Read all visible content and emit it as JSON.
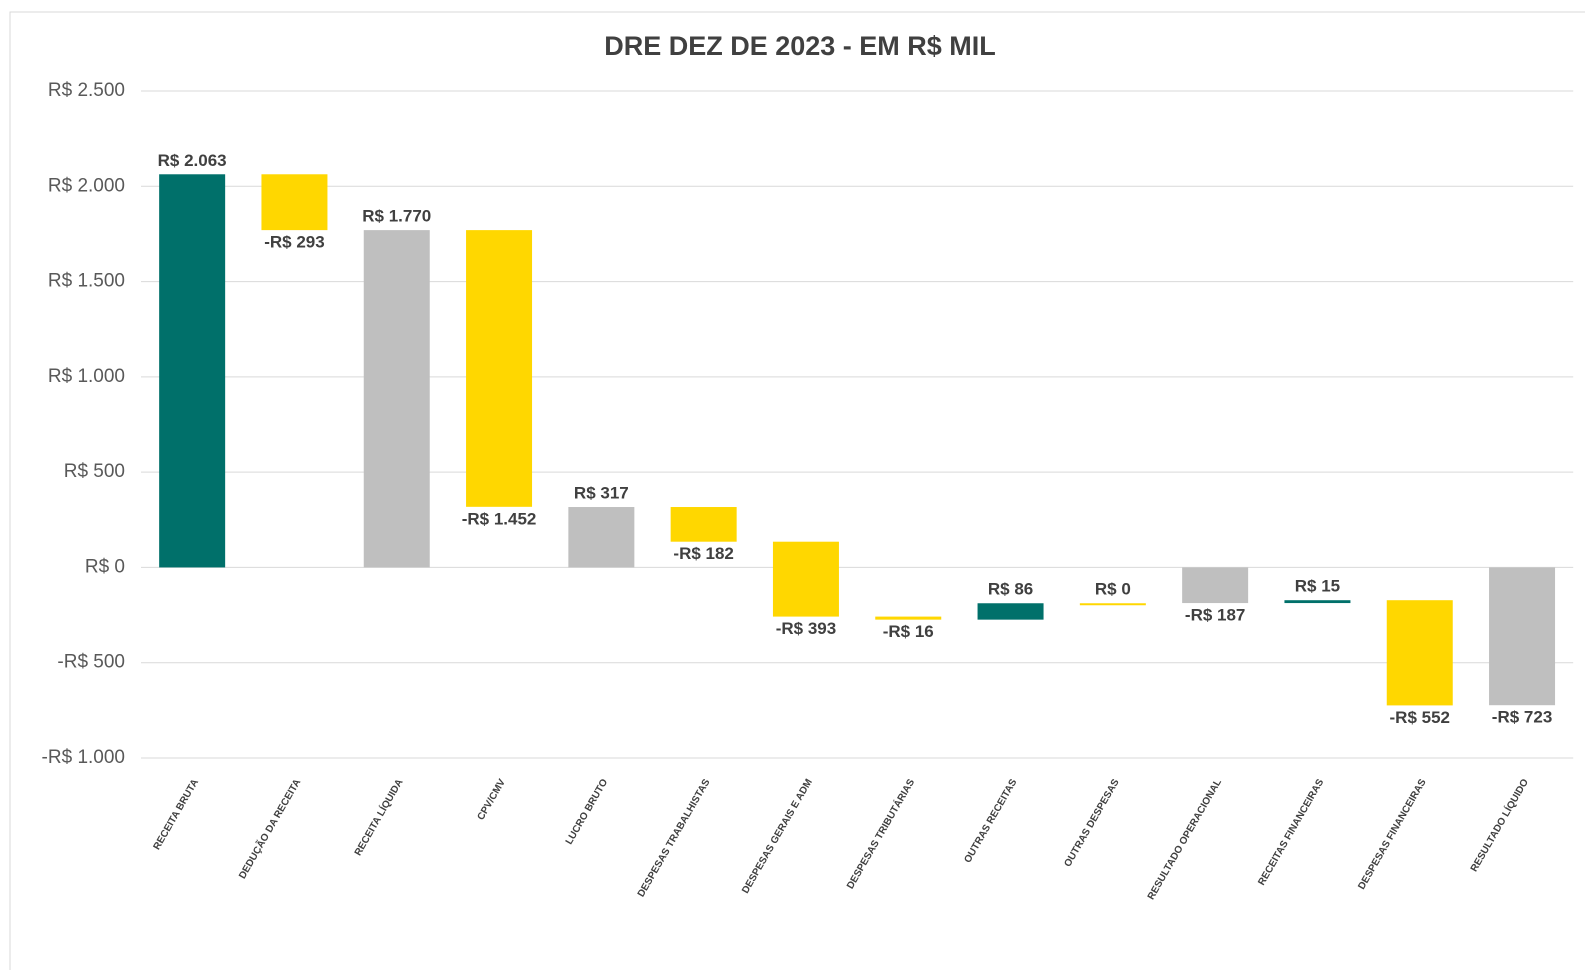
{
  "chart_data": {
    "type": "waterfall",
    "title": "DRE DEZ DE 2023 - EM R$ MIL",
    "categories": [
      "RECEITA BRUTA",
      "DEDUÇÃO DA RECEITA",
      "RECEITA LÍQUIDA",
      "CPV/CMV",
      "LUCRO BRUTO",
      "DESPESAS TRABALHISTAS",
      "DESPESAS GERAIS E ADM",
      "DESPESAS TRIBUTÁRIAS",
      "OUTRAS RECEITAS",
      "OUTRAS DESPESAS",
      "RESULTADO OPERACIONAL",
      "RECEITAS FINANCEIRAS",
      "DESPESAS FINANCEIRAS",
      "RESULTADO LÍQUIDO"
    ],
    "measure": [
      "total",
      "relative",
      "total",
      "relative",
      "total",
      "relative",
      "relative",
      "relative",
      "relative",
      "relative",
      "total",
      "relative",
      "relative",
      "total"
    ],
    "values": [
      2063,
      -293,
      1770,
      -1452,
      317,
      -182,
      -393,
      -16,
      86,
      0,
      -187,
      15,
      -552,
      -723
    ],
    "value_labels": [
      "R$ 2.063",
      "-R$ 293",
      "R$ 1.770",
      "-R$ 1.452",
      "R$ 317",
      "-R$ 182",
      "-R$ 393",
      "-R$ 16",
      "R$ 86",
      "R$ 0",
      "-R$ 187",
      "R$ 15",
      "-R$ 552",
      "-R$ 723"
    ],
    "colors": [
      "#00706a",
      "#ffd700",
      "#bfbfbf",
      "#ffd700",
      "#bfbfbf",
      "#ffd700",
      "#ffd700",
      "#ffd700",
      "#00706a",
      "#ffd700",
      "#bfbfbf",
      "#00706a",
      "#ffd700",
      "#bfbfbf"
    ],
    "ylim": [
      -1000,
      2500
    ],
    "yticks": [
      {
        "value": -1000,
        "label": "-R$ 1.000"
      },
      {
        "value": -500,
        "label": "-R$ 500"
      },
      {
        "value": 0,
        "label": "R$ 0"
      },
      {
        "value": 500,
        "label": "R$ 500"
      },
      {
        "value": 1000,
        "label": "R$ 1.000"
      },
      {
        "value": 1500,
        "label": "R$ 1.500"
      },
      {
        "value": 2000,
        "label": "R$ 2.000"
      },
      {
        "value": 2500,
        "label": "R$ 2.500"
      }
    ],
    "grid": true
  }
}
